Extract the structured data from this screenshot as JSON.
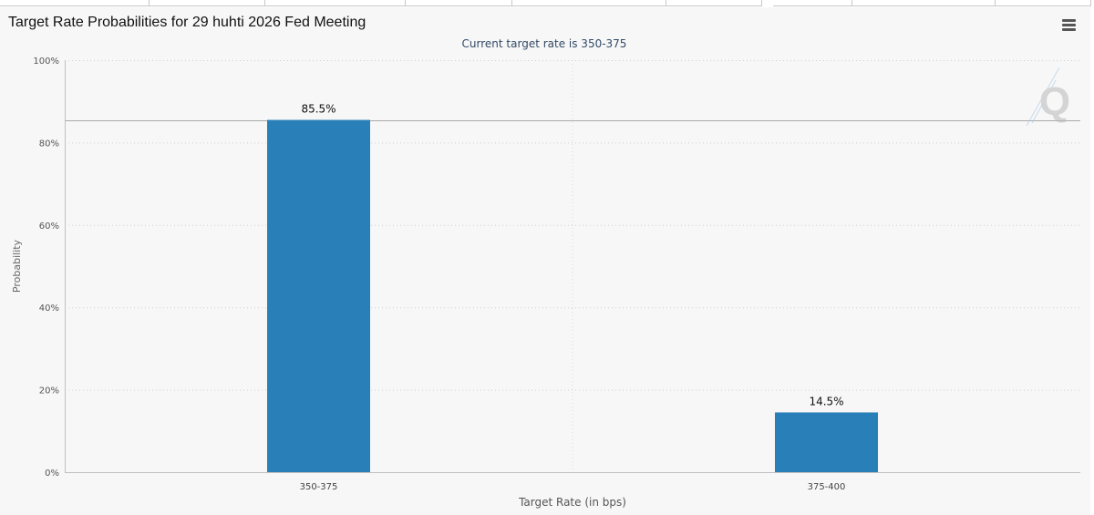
{
  "title": "Target Rate Probabilities for 29 huhti 2026 Fed Meeting",
  "menu_icon": "hamburger-menu-icon",
  "watermark_icon": "q-logo-icon",
  "colors": {
    "bar": "#2980b9",
    "panel_bg": "#f7f7f7",
    "subtitle": "#334a66"
  },
  "chart_data": {
    "type": "bar",
    "title": "Target Rate Probabilities for 29 huhti 2026 Fed Meeting",
    "subtitle": "Current target rate is 350-375",
    "xlabel": "Target Rate (in bps)",
    "ylabel": "Probability",
    "categories": [
      "350-375",
      "375-400"
    ],
    "values": [
      85.5,
      14.5
    ],
    "data_labels": [
      "85.5%",
      "14.5%"
    ],
    "ylim": [
      0,
      100
    ],
    "yticks": [
      0,
      20,
      40,
      60,
      80,
      100
    ],
    "ytick_labels": [
      "0%",
      "20%",
      "40%",
      "60%",
      "80%",
      "100%"
    ],
    "grid": true,
    "reference_line": 85.5,
    "legend": "none"
  }
}
